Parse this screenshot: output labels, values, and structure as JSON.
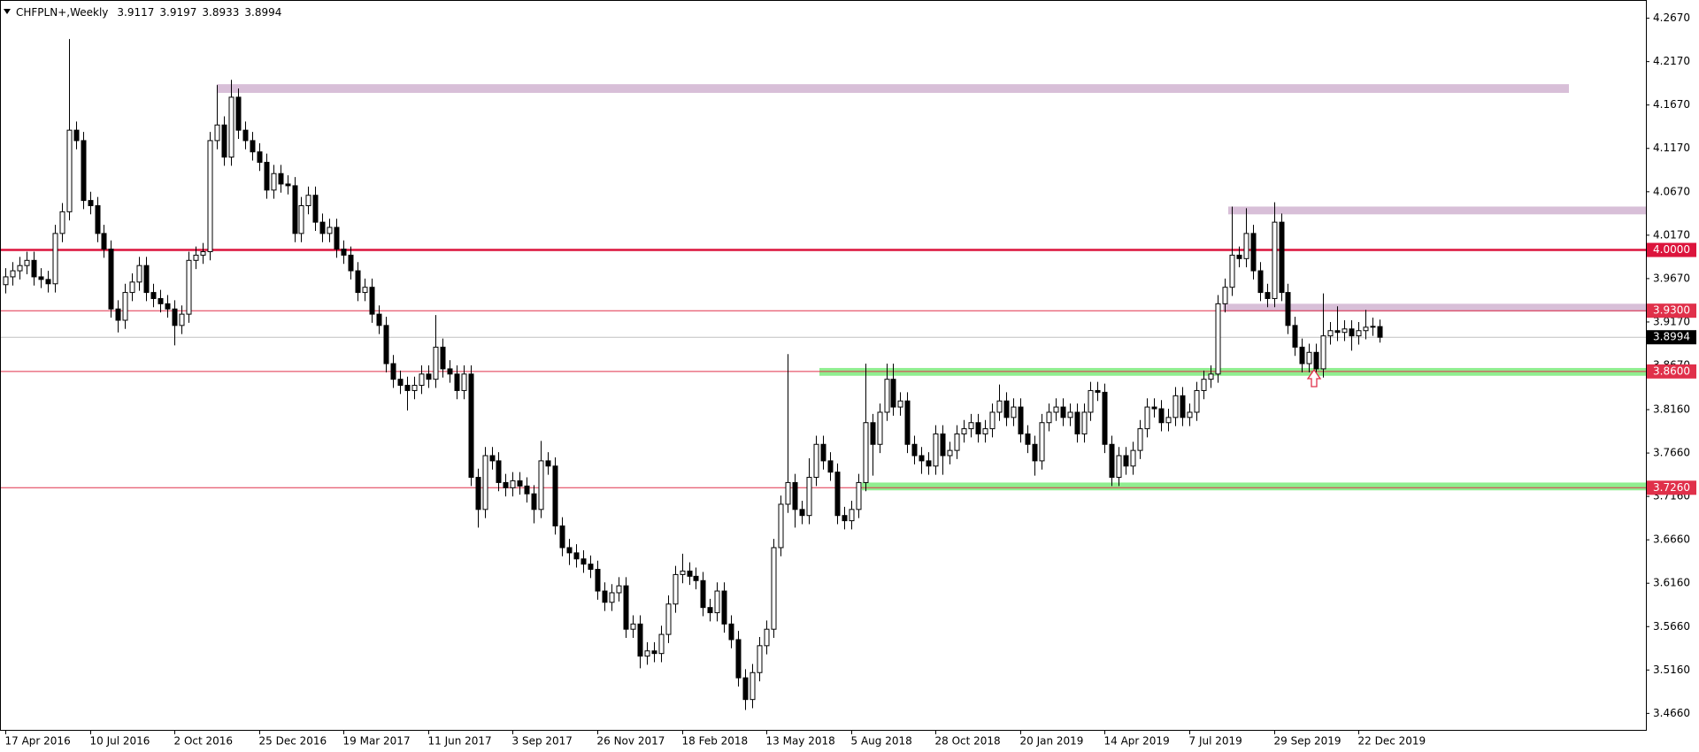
{
  "chart_data": {
    "type": "candlestick",
    "title": "CHFPLN+,Weekly",
    "categories": [
      "17 Apr 2016",
      null,
      null,
      null,
      null,
      null,
      null,
      null,
      null,
      null,
      null,
      null,
      "10 Jul 2016",
      null,
      null,
      null,
      null,
      null,
      null,
      null,
      null,
      null,
      null,
      null,
      "2 Oct 2016",
      null,
      null,
      null,
      null,
      null,
      null,
      null,
      null,
      null,
      null,
      null,
      "25 Dec 2016",
      null,
      null,
      null,
      null,
      null,
      null,
      null,
      null,
      null,
      null,
      null,
      "19 Mar 2017",
      null,
      null,
      null,
      null,
      null,
      null,
      null,
      null,
      null,
      null,
      null,
      "11 Jun 2017",
      null,
      null,
      null,
      null,
      null,
      null,
      null,
      null,
      null,
      null,
      null,
      "3 Sep 2017",
      null,
      null,
      null,
      null,
      null,
      null,
      null,
      null,
      null,
      null,
      null,
      "26 Nov 2017",
      null,
      null,
      null,
      null,
      null,
      null,
      null,
      null,
      null,
      null,
      null,
      "18 Feb 2018",
      null,
      null,
      null,
      null,
      null,
      null,
      null,
      null,
      null,
      null,
      null,
      "13 May 2018",
      null,
      null,
      null,
      null,
      null,
      null,
      null,
      null,
      null,
      null,
      null,
      "5 Aug 2018",
      null,
      null,
      null,
      null,
      null,
      null,
      null,
      null,
      null,
      null,
      null,
      "28 Oct 2018",
      null,
      null,
      null,
      null,
      null,
      null,
      null,
      null,
      null,
      null,
      null,
      "20 Jan 2019",
      null,
      null,
      null,
      null,
      null,
      null,
      null,
      null,
      null,
      null,
      null,
      "14 Apr 2019",
      null,
      null,
      null,
      null,
      null,
      null,
      null,
      null,
      null,
      null,
      null,
      "7 Jul 2019",
      null,
      null,
      null,
      null,
      null,
      null,
      null,
      null,
      null,
      null,
      null,
      "29 Sep 2019",
      null,
      null,
      null,
      null,
      null,
      null,
      null,
      null,
      null,
      null,
      null,
      "22 Dec 2019",
      null,
      null,
      null
    ],
    "open": [
      3.96,
      3.969,
      3.976,
      3.982,
      3.988,
      3.969,
      3.966,
      3.961,
      4.019,
      4.044,
      4.138,
      4.126,
      4.057,
      4.051,
      4.019,
      4.001,
      3.932,
      3.919,
      3.951,
      3.963,
      3.982,
      3.951,
      3.944,
      3.938,
      3.932,
      3.913,
      3.926,
      3.988,
      3.994,
      3.998,
      4.126,
      4.144,
      4.107,
      4.176,
      4.138,
      4.126,
      4.113,
      4.101,
      4.069,
      4.088,
      4.076,
      4.074,
      4.019,
      4.051,
      4.063,
      4.032,
      4.019,
      4.026,
      4.001,
      3.994,
      3.976,
      3.951,
      3.957,
      3.926,
      3.913,
      3.869,
      3.851,
      3.844,
      3.838,
      3.844,
      3.857,
      3.851,
      3.888,
      3.863,
      3.857,
      3.838,
      3.857,
      3.738,
      3.701,
      3.763,
      3.757,
      3.732,
      3.726,
      3.734,
      3.728,
      3.719,
      3.701,
      3.757,
      3.751,
      3.682,
      3.657,
      3.651,
      3.644,
      3.638,
      3.632,
      3.607,
      3.594,
      3.605,
      3.613,
      3.563,
      3.569,
      3.532,
      3.538,
      3.535,
      3.557,
      3.592,
      3.626,
      3.63,
      3.624,
      3.619,
      3.588,
      3.582,
      3.607,
      3.569,
      3.551,
      3.507,
      3.482,
      3.513,
      3.544,
      3.563,
      3.657,
      3.707,
      3.732,
      3.701,
      3.694,
      3.738,
      3.776,
      3.757,
      3.744,
      3.694,
      3.688,
      3.701,
      3.732,
      3.801,
      3.776,
      3.813,
      3.851,
      3.819,
      3.826,
      3.776,
      3.763,
      3.757,
      3.751,
      3.788,
      3.763,
      3.769,
      3.788,
      3.794,
      3.801,
      3.788,
      3.794,
      3.813,
      3.826,
      3.807,
      3.819,
      3.788,
      3.776,
      3.757,
      3.801,
      3.813,
      3.819,
      3.807,
      3.813,
      3.788,
      3.813,
      3.838,
      3.836,
      3.776,
      3.738,
      3.763,
      3.751,
      3.769,
      3.794,
      3.819,
      3.817,
      3.801,
      3.807,
      3.832,
      3.807,
      3.813,
      3.838,
      3.851,
      3.857,
      3.938,
      3.957,
      3.994,
      3.99,
      4.019,
      3.976,
      3.951,
      3.944,
      4.032,
      3.951,
      3.913,
      3.888,
      3.869,
      3.882,
      3.863,
      3.901,
      3.907,
      3.905,
      3.909,
      3.901,
      3.907,
      3.911,
      3.9117
    ],
    "high": [
      3.979,
      3.986,
      3.992,
      3.998,
      3.998,
      3.979,
      3.976,
      4.029,
      4.054,
      4.243,
      4.148,
      4.136,
      4.067,
      4.061,
      4.029,
      4.011,
      3.942,
      3.961,
      3.973,
      3.992,
      3.992,
      3.961,
      3.954,
      3.948,
      3.942,
      3.936,
      3.998,
      4.004,
      4.008,
      4.136,
      4.19,
      4.154,
      4.196,
      4.186,
      4.148,
      4.136,
      4.123,
      4.111,
      4.098,
      4.098,
      4.086,
      4.084,
      4.061,
      4.073,
      4.073,
      4.042,
      4.036,
      4.036,
      4.011,
      4.004,
      3.986,
      3.967,
      3.967,
      3.936,
      3.923,
      3.879,
      3.861,
      3.854,
      3.854,
      3.867,
      3.867,
      3.925,
      3.898,
      3.873,
      3.867,
      3.867,
      3.867,
      3.748,
      3.773,
      3.773,
      3.767,
      3.742,
      3.744,
      3.744,
      3.738,
      3.729,
      3.78,
      3.767,
      3.761,
      3.692,
      3.667,
      3.661,
      3.654,
      3.648,
      3.642,
      3.617,
      3.615,
      3.623,
      3.623,
      3.579,
      3.579,
      3.548,
      3.548,
      3.567,
      3.602,
      3.636,
      3.65,
      3.64,
      3.634,
      3.629,
      3.598,
      3.617,
      3.617,
      3.579,
      3.561,
      3.517,
      3.523,
      3.554,
      3.573,
      3.667,
      3.717,
      3.88,
      3.742,
      3.711,
      3.76,
      3.786,
      3.786,
      3.767,
      3.754,
      3.704,
      3.711,
      3.742,
      3.869,
      3.811,
      3.823,
      3.869,
      3.869,
      3.836,
      3.836,
      3.786,
      3.773,
      3.767,
      3.798,
      3.798,
      3.779,
      3.798,
      3.804,
      3.811,
      3.811,
      3.804,
      3.823,
      3.845,
      3.836,
      3.829,
      3.829,
      3.798,
      3.786,
      3.811,
      3.823,
      3.829,
      3.829,
      3.823,
      3.823,
      3.823,
      3.848,
      3.848,
      3.846,
      3.786,
      3.773,
      3.773,
      3.779,
      3.804,
      3.829,
      3.829,
      3.827,
      3.817,
      3.842,
      3.842,
      3.823,
      3.848,
      3.861,
      3.867,
      3.948,
      3.967,
      4.05,
      4.004,
      4.048,
      4.029,
      3.986,
      3.961,
      4.055,
      4.042,
      3.961,
      3.923,
      3.898,
      3.892,
      3.892,
      3.95,
      3.917,
      3.935,
      3.919,
      3.919,
      3.917,
      3.931,
      3.922,
      3.9197
    ],
    "low": [
      3.95,
      3.959,
      3.966,
      3.972,
      3.959,
      3.956,
      3.951,
      3.951,
      4.009,
      4.034,
      4.116,
      4.047,
      4.041,
      4.009,
      3.991,
      3.922,
      3.905,
      3.909,
      3.941,
      3.953,
      3.941,
      3.934,
      3.928,
      3.922,
      3.89,
      3.903,
      3.916,
      3.978,
      3.984,
      3.988,
      4.116,
      4.097,
      4.097,
      4.128,
      4.116,
      4.103,
      4.091,
      4.059,
      4.059,
      4.066,
      4.064,
      4.009,
      4.009,
      4.041,
      4.022,
      4.009,
      4.009,
      3.991,
      3.984,
      3.966,
      3.941,
      3.941,
      3.916,
      3.903,
      3.859,
      3.841,
      3.834,
      3.815,
      3.828,
      3.834,
      3.841,
      3.841,
      3.853,
      3.847,
      3.828,
      3.828,
      3.728,
      3.68,
      3.691,
      3.747,
      3.722,
      3.716,
      3.716,
      3.718,
      3.709,
      3.685,
      3.691,
      3.741,
      3.672,
      3.647,
      3.637,
      3.634,
      3.628,
      3.622,
      3.597,
      3.584,
      3.584,
      3.595,
      3.553,
      3.553,
      3.518,
      3.522,
      3.525,
      3.525,
      3.547,
      3.582,
      3.616,
      3.614,
      3.609,
      3.578,
      3.572,
      3.572,
      3.559,
      3.541,
      3.497,
      3.47,
      3.472,
      3.503,
      3.534,
      3.553,
      3.647,
      3.697,
      3.68,
      3.684,
      3.684,
      3.728,
      3.747,
      3.734,
      3.684,
      3.678,
      3.678,
      3.691,
      3.722,
      3.74,
      3.766,
      3.803,
      3.809,
      3.809,
      3.766,
      3.753,
      3.742,
      3.741,
      3.741,
      3.741,
      3.753,
      3.759,
      3.778,
      3.784,
      3.778,
      3.778,
      3.784,
      3.803,
      3.797,
      3.797,
      3.778,
      3.766,
      3.74,
      3.747,
      3.791,
      3.803,
      3.797,
      3.797,
      3.778,
      3.778,
      3.803,
      3.826,
      3.766,
      3.728,
      3.728,
      3.741,
      3.741,
      3.759,
      3.784,
      3.807,
      3.791,
      3.791,
      3.797,
      3.797,
      3.797,
      3.803,
      3.828,
      3.841,
      3.847,
      3.928,
      3.947,
      3.98,
      3.98,
      3.966,
      3.941,
      3.934,
      3.934,
      3.941,
      3.903,
      3.878,
      3.859,
      3.859,
      3.853,
      3.853,
      3.891,
      3.895,
      3.895,
      3.884,
      3.891,
      3.897,
      3.901,
      3.8933
    ],
    "close": [
      3.969,
      3.976,
      3.982,
      3.988,
      3.969,
      3.966,
      3.961,
      4.019,
      4.044,
      4.138,
      4.126,
      4.057,
      4.051,
      4.019,
      4.001,
      3.932,
      3.919,
      3.951,
      3.963,
      3.982,
      3.951,
      3.944,
      3.938,
      3.932,
      3.913,
      3.926,
      3.988,
      3.994,
      3.998,
      4.126,
      4.144,
      4.107,
      4.176,
      4.138,
      4.126,
      4.113,
      4.101,
      4.069,
      4.088,
      4.076,
      4.074,
      4.019,
      4.051,
      4.063,
      4.032,
      4.019,
      4.026,
      4.001,
      3.994,
      3.976,
      3.951,
      3.957,
      3.926,
      3.913,
      3.869,
      3.851,
      3.844,
      3.838,
      3.844,
      3.857,
      3.851,
      3.888,
      3.863,
      3.857,
      3.838,
      3.857,
      3.738,
      3.701,
      3.763,
      3.757,
      3.732,
      3.726,
      3.734,
      3.728,
      3.719,
      3.701,
      3.757,
      3.751,
      3.682,
      3.657,
      3.651,
      3.644,
      3.638,
      3.632,
      3.607,
      3.594,
      3.605,
      3.613,
      3.563,
      3.569,
      3.532,
      3.538,
      3.535,
      3.557,
      3.592,
      3.626,
      3.63,
      3.624,
      3.619,
      3.588,
      3.582,
      3.607,
      3.569,
      3.551,
      3.507,
      3.482,
      3.513,
      3.544,
      3.563,
      3.657,
      3.707,
      3.732,
      3.701,
      3.694,
      3.738,
      3.776,
      3.757,
      3.744,
      3.694,
      3.688,
      3.701,
      3.732,
      3.801,
      3.776,
      3.813,
      3.851,
      3.819,
      3.826,
      3.776,
      3.763,
      3.757,
      3.751,
      3.788,
      3.763,
      3.769,
      3.788,
      3.794,
      3.801,
      3.788,
      3.794,
      3.813,
      3.826,
      3.807,
      3.819,
      3.788,
      3.776,
      3.757,
      3.801,
      3.813,
      3.819,
      3.807,
      3.813,
      3.788,
      3.813,
      3.838,
      3.836,
      3.776,
      3.738,
      3.763,
      3.751,
      3.769,
      3.794,
      3.819,
      3.817,
      3.801,
      3.807,
      3.832,
      3.807,
      3.813,
      3.838,
      3.851,
      3.857,
      3.938,
      3.957,
      3.994,
      3.99,
      4.019,
      3.976,
      3.951,
      3.944,
      4.032,
      3.951,
      3.913,
      3.888,
      3.869,
      3.882,
      3.863,
      3.901,
      3.907,
      3.905,
      3.909,
      3.901,
      3.907,
      3.911,
      3.912,
      3.8994
    ],
    "up_color": "#ffffff",
    "down_color": "#000000",
    "ylim": [
      3.447,
      4.288
    ],
    "yticks": [
      {
        "value": 4.267,
        "label": "4.2670"
      },
      {
        "value": 4.217,
        "label": "4.2170"
      },
      {
        "value": 4.167,
        "label": "4.1670"
      },
      {
        "value": 4.117,
        "label": "4.1170"
      },
      {
        "value": 4.067,
        "label": "4.0670"
      },
      {
        "value": 4.017,
        "label": "4.0170"
      },
      {
        "value": 3.967,
        "label": "3.9670"
      },
      {
        "value": 3.917,
        "label": "3.9170"
      },
      {
        "value": 3.867,
        "label": "3.8670"
      },
      {
        "value": 3.816,
        "label": "3.8160"
      },
      {
        "value": 3.766,
        "label": "3.7660"
      },
      {
        "value": 3.716,
        "label": "3.7160"
      },
      {
        "value": 3.666,
        "label": "3.6660"
      },
      {
        "value": 3.616,
        "label": "3.6160"
      },
      {
        "value": 3.566,
        "label": "3.5660"
      },
      {
        "value": 3.516,
        "label": "3.5160"
      },
      {
        "value": 3.466,
        "label": "3.4660"
      }
    ],
    "zones": [
      {
        "low": 4.181,
        "high": 4.191,
        "color": "#d8bfd8"
      },
      {
        "low": 4.041,
        "high": 4.05,
        "color": "#d8bfd8"
      },
      {
        "low": 3.929,
        "high": 3.938,
        "color": "#d8bfd8"
      },
      {
        "low": 3.855,
        "high": 3.864,
        "color": "#90ee90"
      },
      {
        "low": 3.723,
        "high": 3.732,
        "color": "#90ee90"
      }
    ],
    "levels": [
      {
        "value": 4,
        "label": "4.0000",
        "color": "#dc143c",
        "line_width": 2.5
      },
      {
        "value": 3.93,
        "label": "3.9300",
        "color": "#e0304a",
        "line_width": 1
      },
      {
        "value": 3.86,
        "label": "3.8600",
        "color": "#e0304a",
        "line_width": 1
      },
      {
        "value": 3.726,
        "label": "3.7260",
        "color": "#e0304a",
        "line_width": 1
      }
    ],
    "price_line_color": "#c0c0c0"
  }
}
